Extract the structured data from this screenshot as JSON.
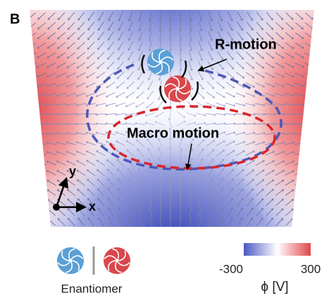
{
  "panel_label": "B",
  "annotations": {
    "r_motion": "R-motion",
    "macro_motion": "Macro motion"
  },
  "axes": {
    "x": "x",
    "y": "y"
  },
  "legend": {
    "label": "Enantiomer"
  },
  "colorbar": {
    "min": -300,
    "max": 300,
    "label": "ϕ [V]"
  }
}
